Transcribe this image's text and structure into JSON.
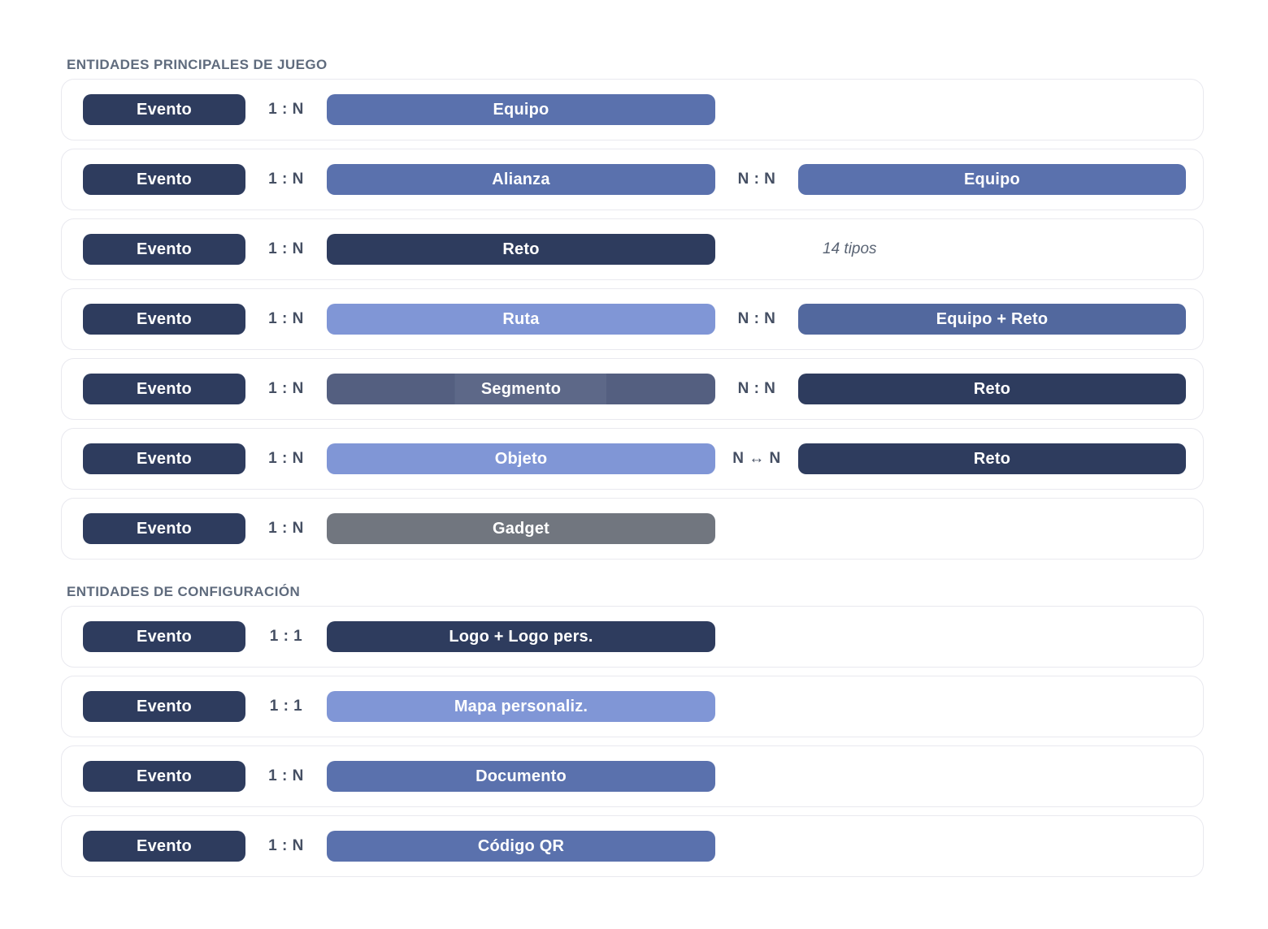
{
  "palette": {
    "navy": "#2e3c5e",
    "blue": "#5a71ad",
    "blue_dark": "#52689e",
    "light_blue": "#8096d6",
    "slate": "#56627f",
    "gray": "#71767f",
    "card_border": "#e9e9ef",
    "title_text": "#5f6b7d",
    "relation_text": "#454f63"
  },
  "sections": [
    {
      "title": "ENTIDADES PRINCIPALES DE JUEGO",
      "rows": [
        {
          "evento": {
            "label": "Evento",
            "color": "navy"
          },
          "rel1": "1 : N",
          "mid": {
            "label": "Equipo",
            "color": "blue"
          }
        },
        {
          "evento": {
            "label": "Evento",
            "color": "navy"
          },
          "rel1": "1 : N",
          "mid": {
            "label": "Alianza",
            "color": "blue"
          },
          "rel2": "N : N",
          "right": {
            "label": "Equipo",
            "color": "blue"
          }
        },
        {
          "evento": {
            "label": "Evento",
            "color": "navy"
          },
          "rel1": "1 : N",
          "mid": {
            "label": "Reto",
            "color": "navy"
          },
          "note": "14 tipos"
        },
        {
          "evento": {
            "label": "Evento",
            "color": "navy"
          },
          "rel1": "1 : N",
          "mid": {
            "label": "Ruta",
            "color": "light_blue"
          },
          "rel2": "N : N",
          "right": {
            "label": "Equipo + Reto",
            "color": "blue_dark"
          }
        },
        {
          "evento": {
            "label": "Evento",
            "color": "navy"
          },
          "rel1": "1 : N",
          "mid": {
            "label": "Segmento",
            "color": "slate"
          },
          "rel2": "N : N",
          "right": {
            "label": "Reto",
            "color": "navy"
          }
        },
        {
          "evento": {
            "label": "Evento",
            "color": "navy"
          },
          "rel1": "1 : N",
          "mid": {
            "label": "Objeto",
            "color": "light_blue"
          },
          "rel2": "N ↔ N",
          "right": {
            "label": "Reto",
            "color": "navy"
          }
        },
        {
          "evento": {
            "label": "Evento",
            "color": "navy"
          },
          "rel1": "1 : N",
          "mid": {
            "label": "Gadget",
            "color": "gray"
          }
        }
      ]
    },
    {
      "title": "ENTIDADES DE CONFIGURACIÓN",
      "rows": [
        {
          "evento": {
            "label": "Evento",
            "color": "navy"
          },
          "rel1": "1 : 1",
          "mid": {
            "label": "Logo + Logo pers.",
            "color": "navy"
          }
        },
        {
          "evento": {
            "label": "Evento",
            "color": "navy"
          },
          "rel1": "1 : 1",
          "mid": {
            "label": "Mapa personaliz.",
            "color": "light_blue"
          }
        },
        {
          "evento": {
            "label": "Evento",
            "color": "navy"
          },
          "rel1": "1 : N",
          "mid": {
            "label": "Documento",
            "color": "blue"
          }
        },
        {
          "evento": {
            "label": "Evento",
            "color": "navy"
          },
          "rel1": "1 : N",
          "mid": {
            "label": "Código QR",
            "color": "blue"
          }
        }
      ]
    }
  ]
}
